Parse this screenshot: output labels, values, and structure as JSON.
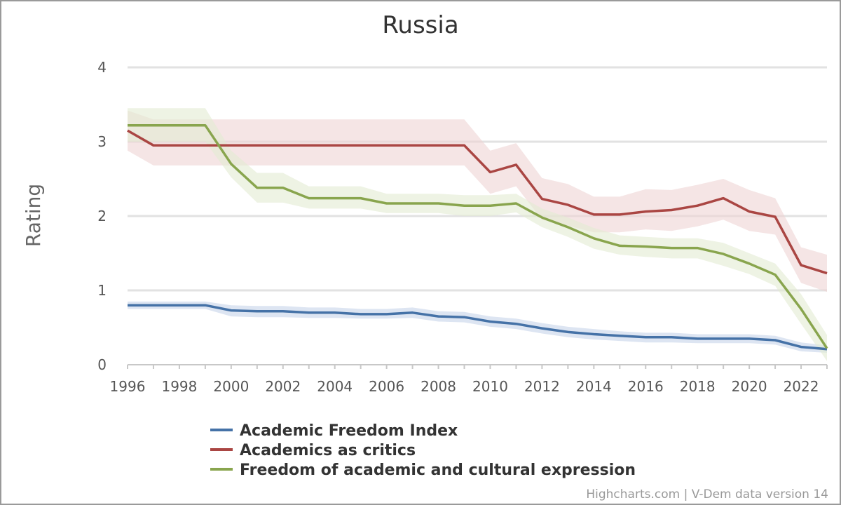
{
  "chart_data": {
    "type": "line",
    "title": "Russia",
    "xlabel": "",
    "ylabel": "Rating",
    "xlim": [
      1996,
      2023
    ],
    "ylim": [
      0,
      4
    ],
    "x_ticks": [
      "1996",
      "1998",
      "2000",
      "2002",
      "2004",
      "2006",
      "2008",
      "2010",
      "2012",
      "2014",
      "2016",
      "2018",
      "2020",
      "2022"
    ],
    "y_ticks": [
      "0",
      "1",
      "2",
      "3",
      "4"
    ],
    "grid": true,
    "legend_position": "bottom",
    "x": [
      1996,
      1997,
      1998,
      1999,
      2000,
      2001,
      2002,
      2003,
      2004,
      2005,
      2006,
      2007,
      2008,
      2009,
      2010,
      2011,
      2012,
      2013,
      2014,
      2015,
      2016,
      2017,
      2018,
      2019,
      2020,
      2021,
      2022,
      2023
    ],
    "series": [
      {
        "name": "Academic Freedom Index",
        "color": "#4572a7",
        "band_color": "#c6d4ea",
        "values": [
          0.8,
          0.8,
          0.8,
          0.8,
          0.73,
          0.72,
          0.72,
          0.7,
          0.7,
          0.68,
          0.68,
          0.7,
          0.65,
          0.64,
          0.58,
          0.55,
          0.49,
          0.44,
          0.41,
          0.39,
          0.37,
          0.37,
          0.35,
          0.35,
          0.35,
          0.33,
          0.24,
          0.21
        ],
        "lower": [
          0.75,
          0.75,
          0.75,
          0.75,
          0.65,
          0.64,
          0.64,
          0.63,
          0.63,
          0.62,
          0.62,
          0.63,
          0.58,
          0.57,
          0.51,
          0.48,
          0.42,
          0.37,
          0.34,
          0.32,
          0.3,
          0.3,
          0.29,
          0.29,
          0.29,
          0.27,
          0.18,
          0.16
        ],
        "upper": [
          0.85,
          0.85,
          0.85,
          0.85,
          0.8,
          0.79,
          0.79,
          0.77,
          0.77,
          0.75,
          0.75,
          0.77,
          0.72,
          0.71,
          0.65,
          0.62,
          0.56,
          0.51,
          0.48,
          0.45,
          0.43,
          0.43,
          0.41,
          0.41,
          0.41,
          0.39,
          0.3,
          0.26
        ]
      },
      {
        "name": "Academics as critics",
        "color": "#aa4643",
        "band_color": "#eed4d3",
        "values": [
          3.15,
          2.95,
          2.95,
          2.95,
          2.95,
          2.95,
          2.95,
          2.95,
          2.95,
          2.95,
          2.95,
          2.95,
          2.95,
          2.95,
          2.59,
          2.69,
          2.23,
          2.15,
          2.02,
          2.02,
          2.06,
          2.08,
          2.14,
          2.24,
          2.06,
          1.99,
          1.34,
          1.23
        ],
        "lower": [
          2.88,
          2.68,
          2.68,
          2.68,
          2.68,
          2.68,
          2.68,
          2.68,
          2.68,
          2.68,
          2.68,
          2.68,
          2.68,
          2.68,
          2.3,
          2.4,
          1.95,
          1.87,
          1.78,
          1.78,
          1.82,
          1.8,
          1.86,
          1.95,
          1.8,
          1.75,
          1.1,
          0.98
        ],
        "upper": [
          3.42,
          3.3,
          3.3,
          3.3,
          3.3,
          3.3,
          3.3,
          3.3,
          3.3,
          3.3,
          3.3,
          3.3,
          3.3,
          3.3,
          2.88,
          2.98,
          2.51,
          2.43,
          2.26,
          2.26,
          2.36,
          2.35,
          2.42,
          2.5,
          2.35,
          2.24,
          1.58,
          1.48
        ]
      },
      {
        "name": "Freedom of academic and cultural expression",
        "color": "#89a54e",
        "band_color": "#e3ebd2",
        "values": [
          3.22,
          3.22,
          3.22,
          3.22,
          2.7,
          2.38,
          2.38,
          2.24,
          2.24,
          2.24,
          2.17,
          2.17,
          2.17,
          2.14,
          2.14,
          2.17,
          1.98,
          1.85,
          1.7,
          1.6,
          1.59,
          1.57,
          1.57,
          1.49,
          1.36,
          1.21,
          0.75,
          0.22
        ],
        "lower": [
          3.0,
          3.0,
          3.0,
          3.0,
          2.52,
          2.18,
          2.18,
          2.1,
          2.1,
          2.1,
          2.04,
          2.04,
          2.04,
          2.0,
          2.0,
          2.05,
          1.85,
          1.72,
          1.56,
          1.48,
          1.45,
          1.43,
          1.43,
          1.33,
          1.22,
          1.06,
          0.55,
          0.05
        ],
        "upper": [
          3.45,
          3.45,
          3.45,
          3.45,
          2.88,
          2.58,
          2.58,
          2.4,
          2.4,
          2.4,
          2.3,
          2.3,
          2.3,
          2.28,
          2.28,
          2.3,
          2.1,
          1.98,
          1.84,
          1.74,
          1.72,
          1.7,
          1.7,
          1.64,
          1.5,
          1.36,
          0.95,
          0.4
        ]
      }
    ]
  },
  "credits": "Highcharts.com | V-Dem data version 14"
}
